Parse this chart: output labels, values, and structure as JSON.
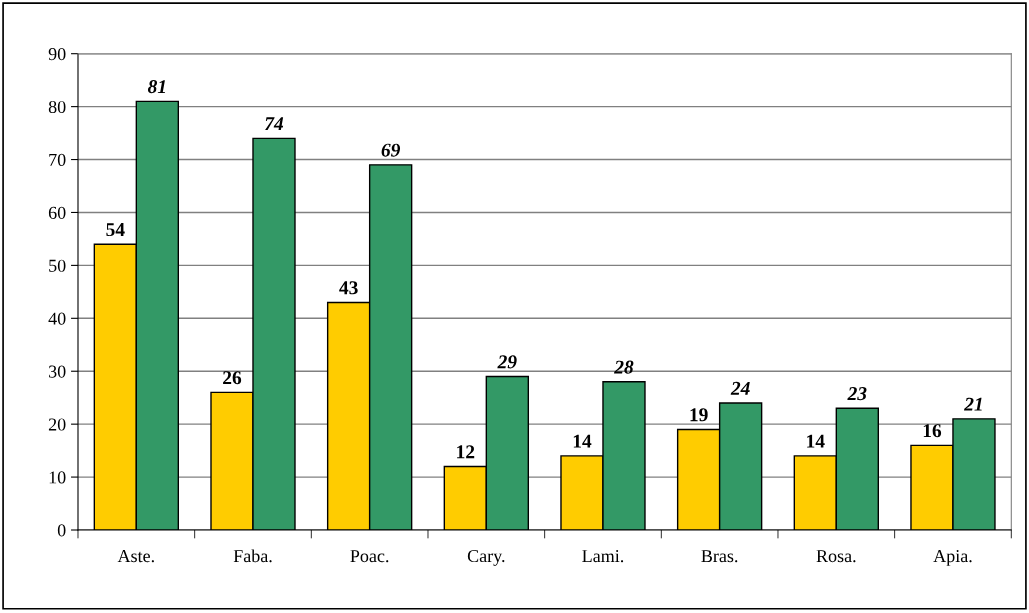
{
  "chart_data": {
    "type": "bar",
    "categories": [
      "Aste.",
      "Faba.",
      "Poac.",
      "Cary.",
      "Lami.",
      "Bras.",
      "Rosa.",
      "Apia."
    ],
    "series": [
      {
        "color": "#ffcc00",
        "values": [
          54,
          26,
          43,
          12,
          14,
          19,
          14,
          16
        ]
      },
      {
        "color": "#339966",
        "values": [
          81,
          74,
          69,
          29,
          28,
          24,
          23,
          21
        ]
      }
    ],
    "ylim": [
      0,
      90
    ],
    "yticks": [
      0,
      10,
      20,
      30,
      40,
      50,
      60,
      70,
      80,
      90
    ],
    "grid": "y",
    "data_labels": true,
    "legend": false
  }
}
